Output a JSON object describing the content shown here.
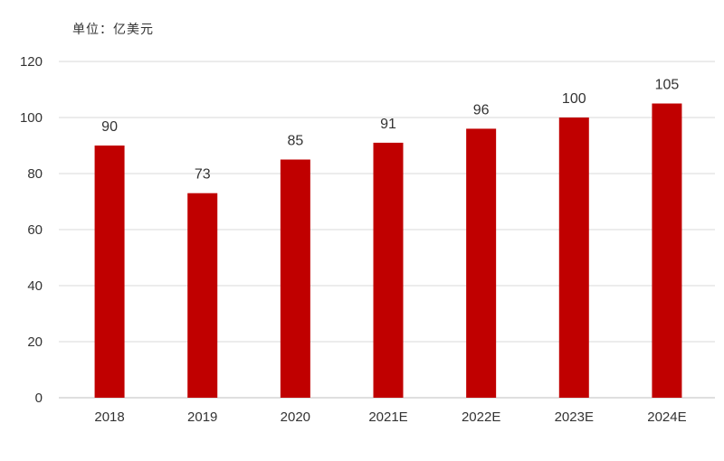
{
  "unit_label": "单位：亿美元",
  "chart_data": {
    "type": "bar",
    "title": "",
    "xlabel": "",
    "ylabel": "",
    "categories": [
      "2018",
      "2019",
      "2020",
      "2021E",
      "2022E",
      "2023E",
      "2024E"
    ],
    "values": [
      90,
      73,
      85,
      91,
      96,
      100,
      105
    ],
    "ylim": [
      0,
      120
    ],
    "yticks": [
      0,
      20,
      40,
      60,
      80,
      100,
      120
    ],
    "data_labels": [
      "90",
      "73",
      "85",
      "91",
      "96",
      "100",
      "105"
    ],
    "bar_color": "#c00000",
    "grid": true,
    "legend": "none"
  }
}
